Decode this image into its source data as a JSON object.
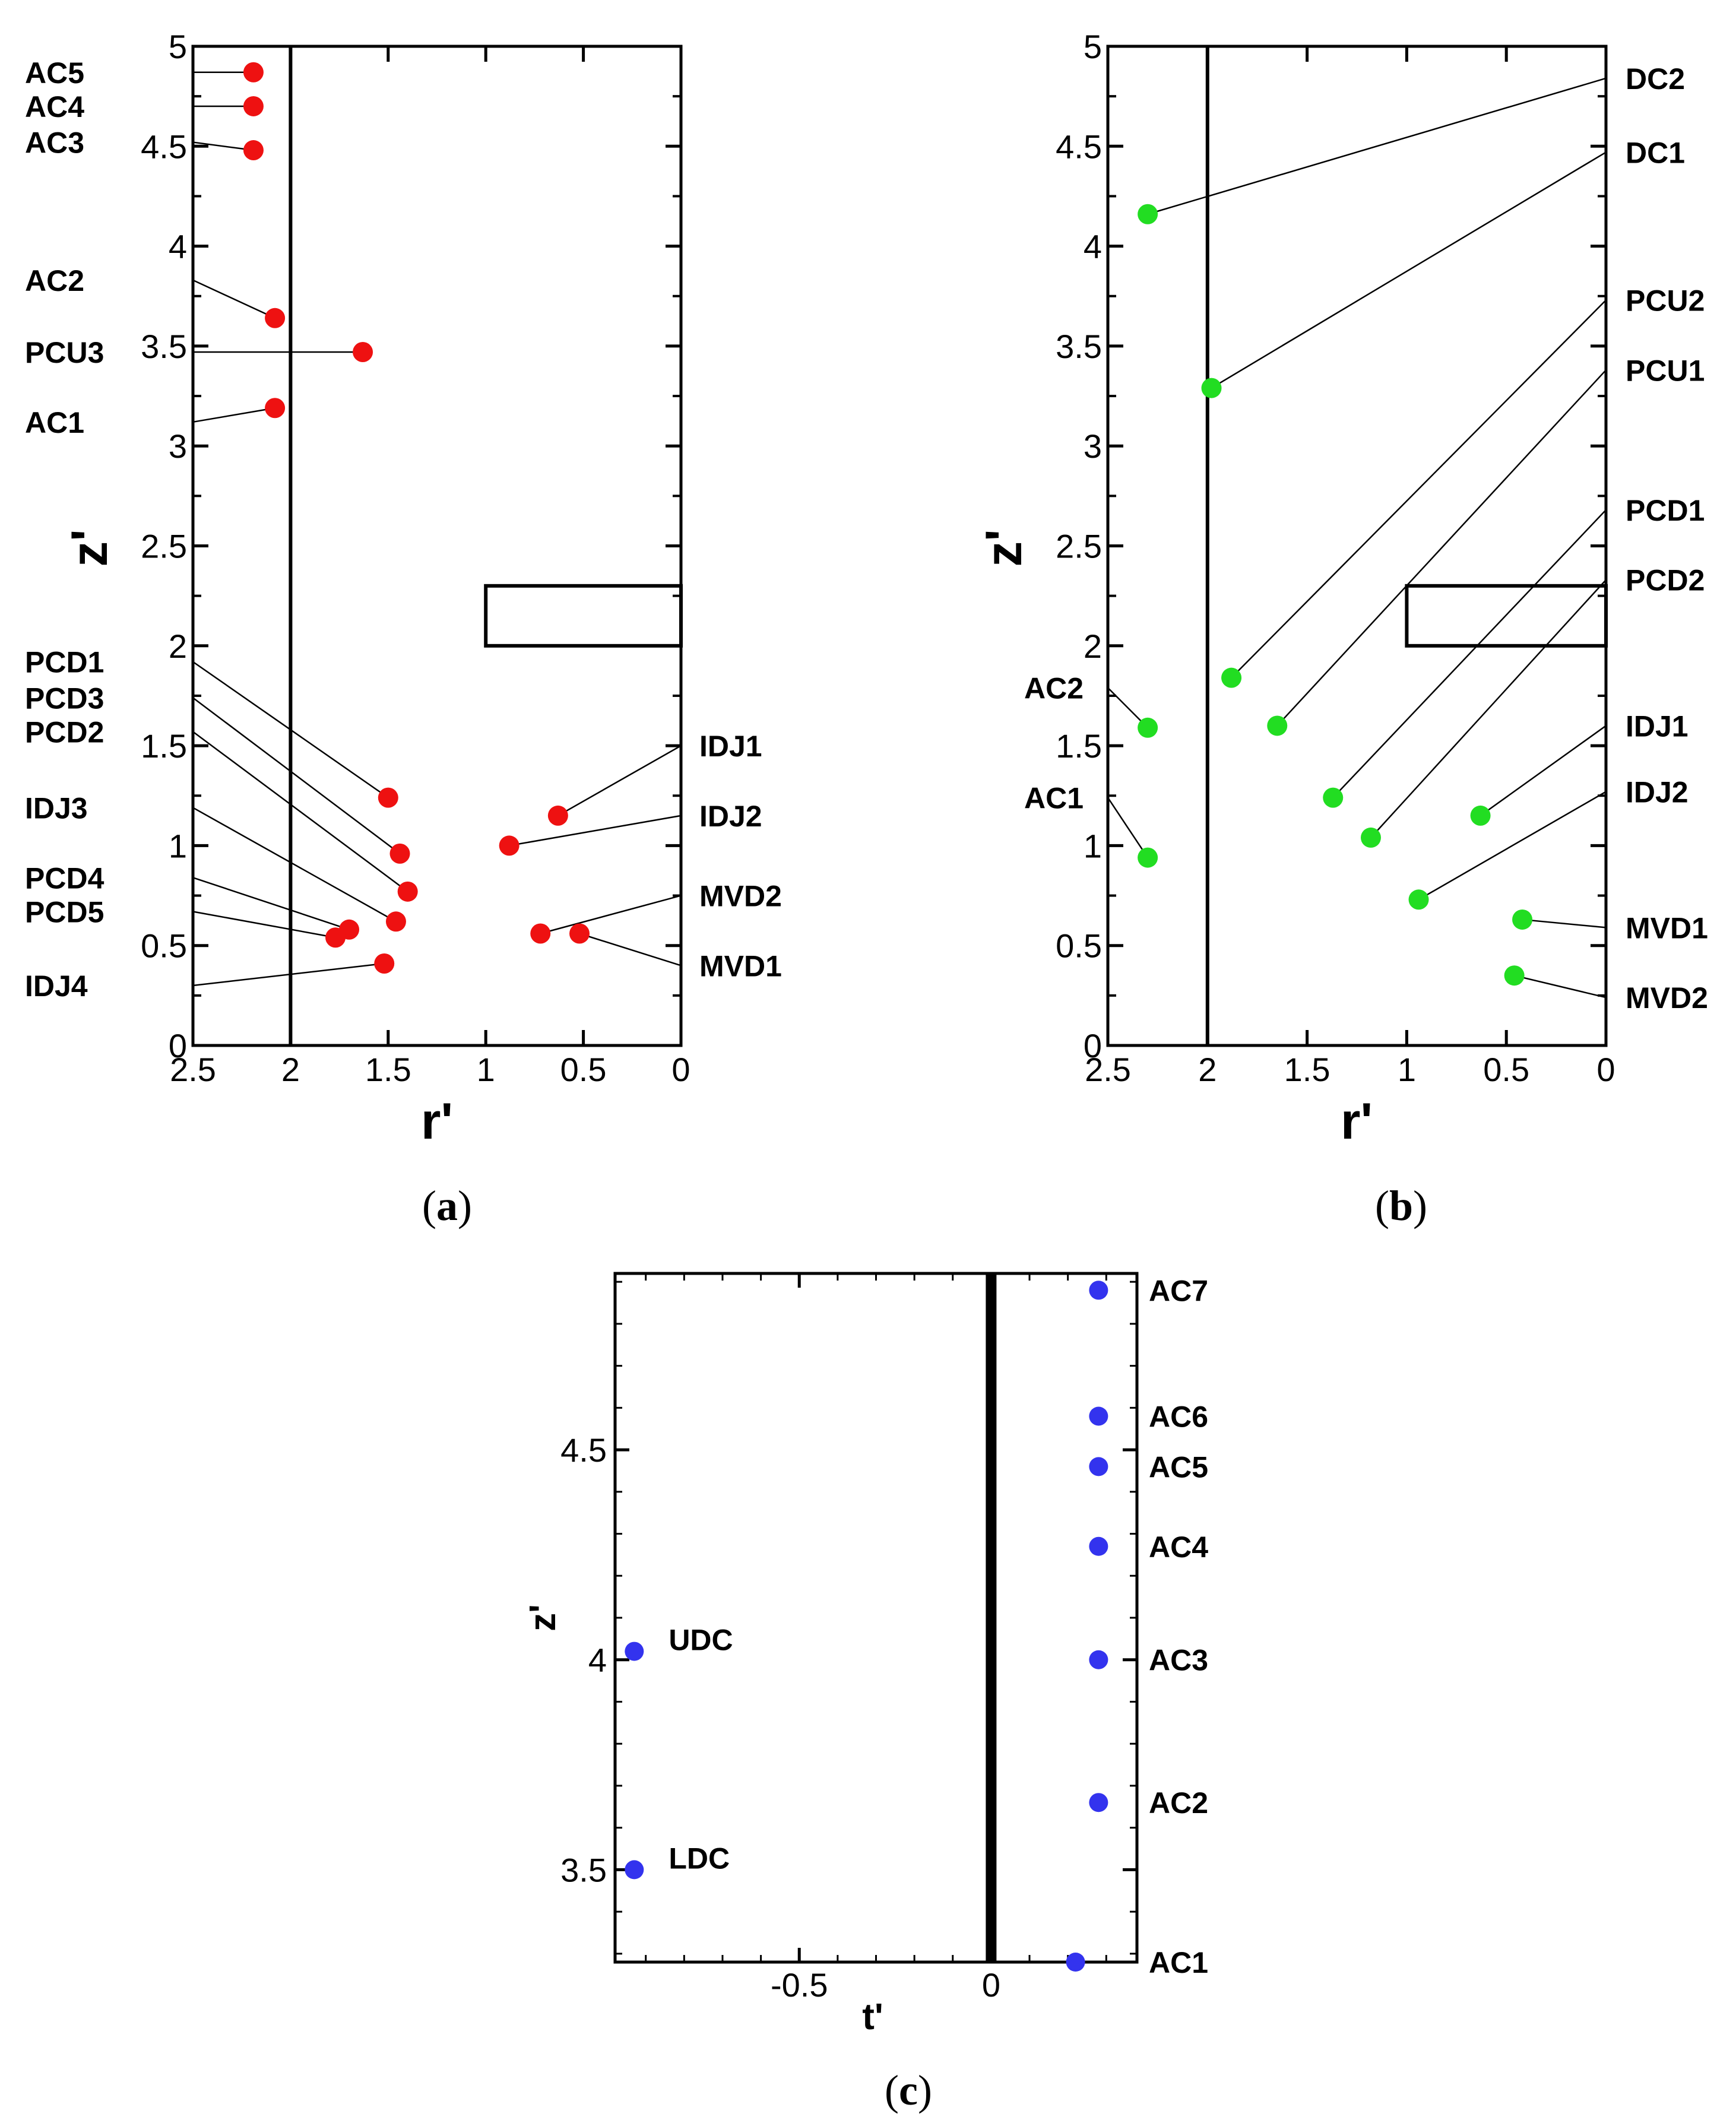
{
  "chart_data": [
    {
      "type": "scatter",
      "panel": "a",
      "caption_letter": "a",
      "xlabel": "r'",
      "ylabel": "z'",
      "xlim": [
        2.5,
        0
      ],
      "ylim": [
        0,
        5
      ],
      "x_ticks": [
        "2.5",
        "2",
        "1.5",
        "1",
        "0.5",
        "0"
      ],
      "y_ticks": [
        "0",
        "0.5",
        "1",
        "1.5",
        "2",
        "2.5",
        "3",
        "3.5",
        "4",
        "4.5",
        "5"
      ],
      "marker_color": "#ee1111",
      "wall_line_r": 2,
      "rect": {
        "r_from": 1,
        "r_to": 0,
        "z_from": 2,
        "z_to": 2.3
      },
      "points": [
        {
          "name": "AC5",
          "r": 2.19,
          "z": 4.87,
          "side": "left",
          "label_z": 4.87
        },
        {
          "name": "AC4",
          "r": 2.19,
          "z": 4.7,
          "side": "left",
          "label_z": 4.7
        },
        {
          "name": "AC3",
          "r": 2.19,
          "z": 4.48,
          "side": "left",
          "label_z": 4.52
        },
        {
          "name": "AC2",
          "r": 2.08,
          "z": 3.64,
          "side": "left",
          "label_z": 3.83
        },
        {
          "name": "PCU3",
          "r": 1.63,
          "z": 3.47,
          "side": "left",
          "label_z": 3.47
        },
        {
          "name": "AC1",
          "r": 2.08,
          "z": 3.19,
          "side": "left",
          "label_z": 3.12
        },
        {
          "name": "PCD1",
          "r": 1.5,
          "z": 1.24,
          "side": "left",
          "label_z": 1.92
        },
        {
          "name": "PCD3",
          "r": 1.44,
          "z": 0.96,
          "side": "left",
          "label_z": 1.74
        },
        {
          "name": "PCD2",
          "r": 1.4,
          "z": 0.77,
          "side": "left",
          "label_z": 1.57
        },
        {
          "name": "IDJ3",
          "r": 1.46,
          "z": 0.62,
          "side": "left",
          "label_z": 1.19
        },
        {
          "name": "PCD4",
          "r": 1.7,
          "z": 0.58,
          "side": "left",
          "label_z": 0.84
        },
        {
          "name": "PCD5",
          "r": 1.77,
          "z": 0.54,
          "side": "left",
          "label_z": 0.67
        },
        {
          "name": "IDJ4",
          "r": 1.52,
          "z": 0.41,
          "side": "left",
          "label_z": 0.3
        },
        {
          "name": "IDJ1",
          "r": 0.63,
          "z": 1.15,
          "side": "right",
          "label_z": 1.5
        },
        {
          "name": "IDJ2",
          "r": 0.88,
          "z": 1.0,
          "side": "right",
          "label_z": 1.15
        },
        {
          "name": "MVD2",
          "r": 0.72,
          "z": 0.56,
          "side": "right",
          "label_z": 0.75
        },
        {
          "name": "MVD1",
          "r": 0.52,
          "z": 0.56,
          "side": "right",
          "label_z": 0.4
        }
      ]
    },
    {
      "type": "scatter",
      "panel": "b",
      "caption_letter": "b",
      "xlabel": "r'",
      "ylabel": "z'",
      "xlim": [
        2.5,
        0
      ],
      "ylim": [
        0,
        5
      ],
      "x_ticks": [
        "2.5",
        "2",
        "1.5",
        "1",
        "0.5",
        "0"
      ],
      "y_ticks": [
        "0",
        "0.5",
        "1",
        "1.5",
        "2",
        "2.5",
        "3",
        "3.5",
        "4",
        "4.5",
        "5"
      ],
      "marker_color": "#22dd22",
      "wall_line_r": 2,
      "rect": {
        "r_from": 1,
        "r_to": 0,
        "z_from": 2,
        "z_to": 2.3
      },
      "points": [
        {
          "name": "DC2",
          "r": 2.3,
          "z": 4.16,
          "side": "right",
          "label_z": 4.84
        },
        {
          "name": "DC1",
          "r": 1.98,
          "z": 3.29,
          "side": "right",
          "label_z": 4.47
        },
        {
          "name": "PCU2",
          "r": 1.88,
          "z": 1.84,
          "side": "right",
          "label_z": 3.73
        },
        {
          "name": "PCU1",
          "r": 1.65,
          "z": 1.6,
          "side": "right",
          "label_z": 3.38
        },
        {
          "name": "PCD1",
          "r": 1.37,
          "z": 1.24,
          "side": "right",
          "label_z": 2.68
        },
        {
          "name": "PCD2",
          "r": 1.18,
          "z": 1.04,
          "side": "right",
          "label_z": 2.33
        },
        {
          "name": "IDJ1",
          "r": 0.63,
          "z": 1.15,
          "side": "right",
          "label_z": 1.6
        },
        {
          "name": "IDJ2",
          "r": 0.94,
          "z": 0.73,
          "side": "right",
          "label_z": 1.27
        },
        {
          "name": "MVD1",
          "r": 0.42,
          "z": 0.63,
          "side": "right",
          "label_z": 0.59
        },
        {
          "name": "MVD2",
          "r": 0.46,
          "z": 0.35,
          "side": "right",
          "label_z": 0.24
        },
        {
          "name": "AC2",
          "r": 2.3,
          "z": 1.59,
          "side": "left",
          "label_z": 1.79
        },
        {
          "name": "AC1",
          "r": 2.3,
          "z": 0.94,
          "side": "left",
          "label_z": 1.24
        }
      ]
    },
    {
      "type": "scatter",
      "panel": "c",
      "caption_letter": "c",
      "xlabel": "t'",
      "ylabel": "z'",
      "xlim": [
        -0.98,
        0.38
      ],
      "ylim": [
        3.28,
        4.92
      ],
      "x_ticks": [
        "-0.5",
        "0"
      ],
      "y_ticks": [
        "3.5",
        "4",
        "4.5"
      ],
      "marker_color": "#3333ee",
      "wall_line_t": 0,
      "points": [
        {
          "name": "AC7",
          "t": 0.28,
          "z": 4.88
        },
        {
          "name": "AC6",
          "t": 0.28,
          "z": 4.58
        },
        {
          "name": "AC5",
          "t": 0.28,
          "z": 4.46
        },
        {
          "name": "AC4",
          "t": 0.28,
          "z": 4.27
        },
        {
          "name": "AC3",
          "t": 0.28,
          "z": 4.0
        },
        {
          "name": "AC2",
          "t": 0.28,
          "z": 3.66
        },
        {
          "name": "AC1",
          "t": 0.22,
          "z": 3.28
        },
        {
          "name": "UDC",
          "t": -0.93,
          "z": 4.02
        },
        {
          "name": "LDC",
          "t": -0.93,
          "z": 3.5
        }
      ]
    }
  ]
}
